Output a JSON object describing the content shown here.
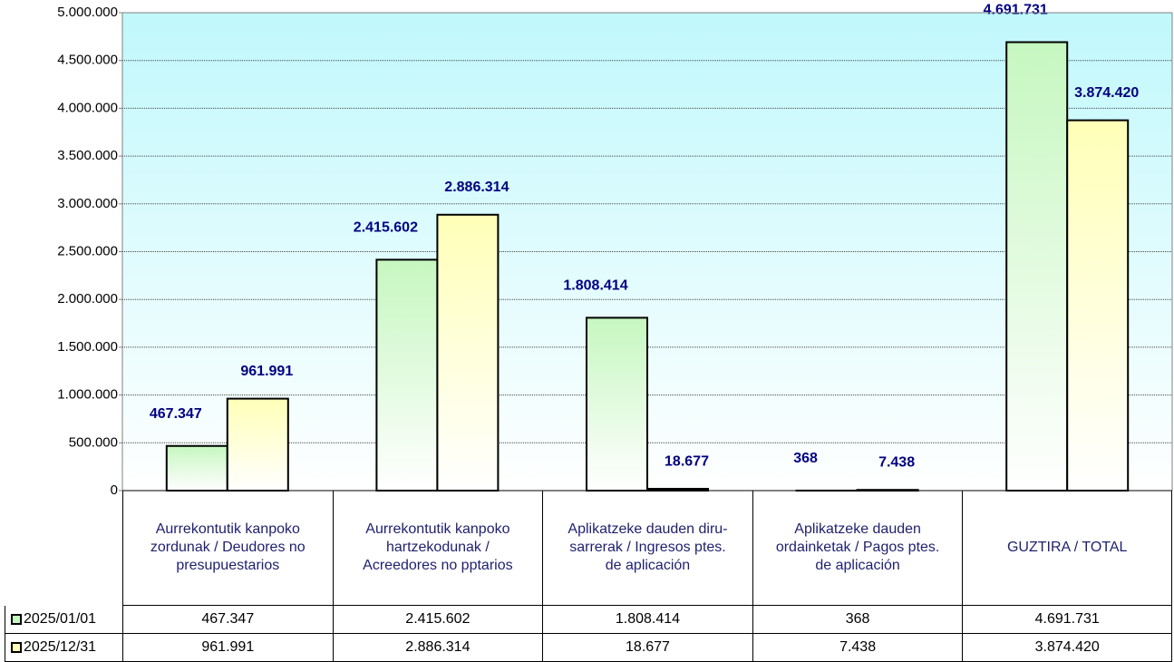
{
  "chart_data": {
    "type": "bar",
    "categories": [
      "Aurrekontutik kanpoko zordunak / Deudores no presupuestarios",
      "Aurrekontutik kanpoko hartzekodunak / Acreedores no pptarios",
      "Aplikatzeke dauden diru-sarrerak / Ingresos ptes. de aplicación",
      "Aplikatzeke dauden ordainketak / Pagos ptes. de aplicación",
      "GUZTIRA / TOTAL"
    ],
    "series": [
      {
        "name": "2025/01/01",
        "color": "#c6f7c0",
        "values": [
          467347,
          2415602,
          1808414,
          368,
          4691731
        ],
        "value_labels": [
          "467.347",
          "2.415.602",
          "1.808.414",
          "368",
          "4.691.731"
        ]
      },
      {
        "name": "2025/12/31",
        "color": "#ffffb8",
        "values": [
          961991,
          2886314,
          18677,
          7438,
          3874420
        ],
        "value_labels": [
          "961.991",
          "2.886.314",
          "18.677",
          "7.438",
          "3.874.420"
        ]
      }
    ],
    "ylim": [
      0,
      5000000
    ],
    "yticks": [
      0,
      {
        "value": 500000,
        "label": "500.000"
      },
      {
        "value": 1000000,
        "label": "1.000.000"
      },
      {
        "value": 1500000,
        "label": "1.500.000"
      },
      {
        "value": 2000000,
        "label": "2.000.000"
      },
      {
        "value": 2500000,
        "label": "2.500.000"
      },
      {
        "value": 3000000,
        "label": "3.000.000"
      },
      {
        "value": 3500000,
        "label": "3.500.000"
      },
      {
        "value": 4000000,
        "label": "4.000.000"
      },
      {
        "value": 4500000,
        "label": "4.500.000"
      },
      {
        "value": 5000000,
        "label": "5.000.000"
      }
    ],
    "grid": true
  }
}
